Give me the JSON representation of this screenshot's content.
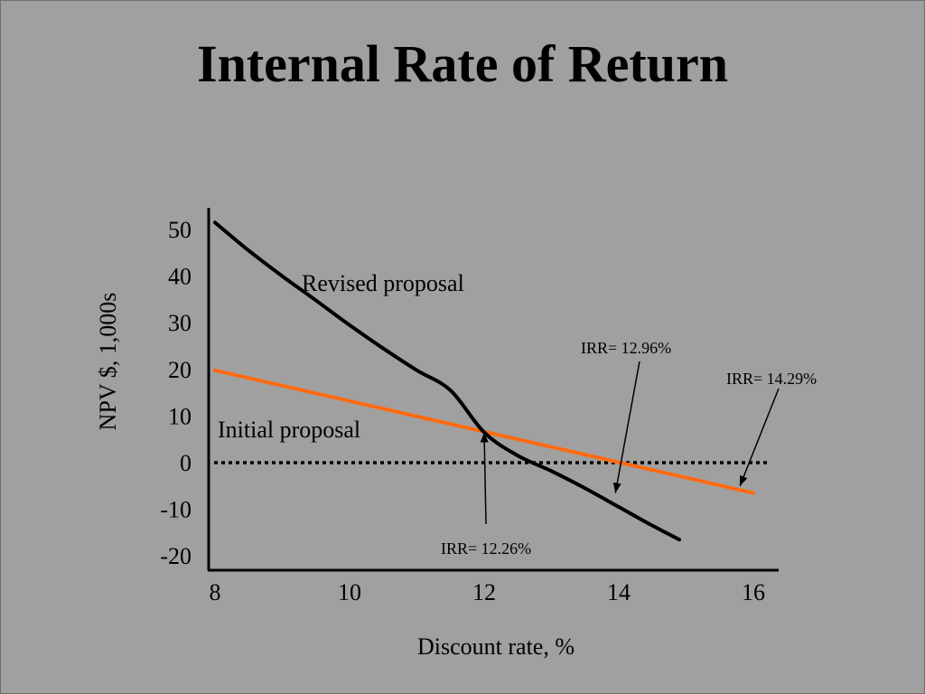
{
  "title": "Internal Rate of Return",
  "chart_data": {
    "type": "line",
    "xlabel": "Discount rate, %",
    "ylabel": "NPV $, 1,000s",
    "xlim": [
      8,
      16.3
    ],
    "ylim": [
      -22.5,
      55
    ],
    "x_ticks": [
      "8",
      "10",
      "12",
      "14",
      "16"
    ],
    "y_ticks": [
      "50",
      "40",
      "30",
      "20",
      "10",
      "0",
      "-10",
      "-20"
    ],
    "grid": false,
    "zero_line": "dotted",
    "series": [
      {
        "name": "Revised proposal",
        "color": "#000000",
        "x": [
          8.0,
          8.5,
          9.0,
          9.5,
          10.0,
          10.5,
          11.0,
          11.5,
          12.0,
          12.5,
          13.0,
          13.5,
          14.0,
          14.5,
          14.9
        ],
        "y": [
          51.5,
          45.5,
          40.0,
          34.8,
          29.5,
          24.5,
          19.8,
          15.5,
          6.5,
          1.5,
          -1.8,
          -5.5,
          -9.5,
          -13.5,
          -16.5
        ]
      },
      {
        "name": "Initial proposal",
        "color": "#ff6a10",
        "x": [
          8.0,
          16.0
        ],
        "y": [
          19.8,
          -6.5
        ]
      }
    ],
    "annotations": [
      {
        "text": "IRR= 12.26%",
        "x": 12.0,
        "y": 6.5
      },
      {
        "text": "IRR= 12.96%",
        "x": 13.95,
        "y": -6.5
      },
      {
        "text": "IRR= 14.29%",
        "x": 15.8,
        "y": -5.0
      }
    ]
  }
}
